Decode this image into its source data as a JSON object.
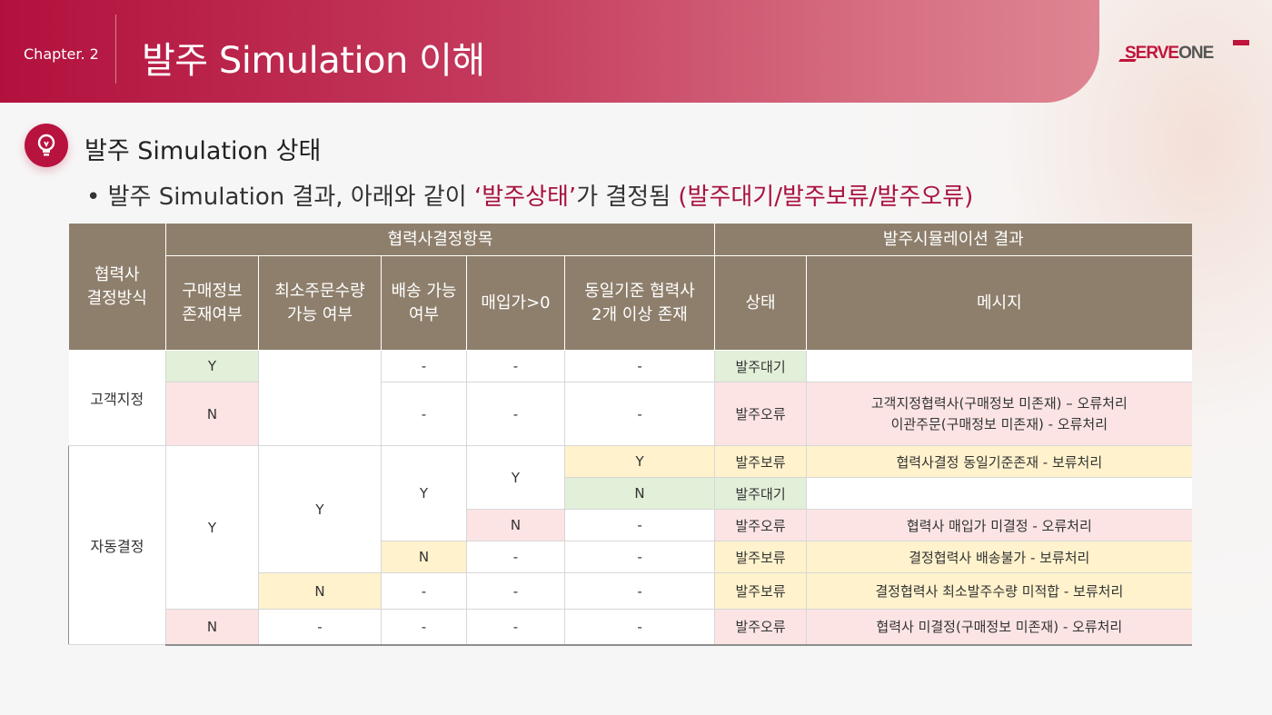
{
  "header": {
    "chapter": "Chapter. 2",
    "title": "발주 Simulation 이해",
    "logo_serve": "SERVE",
    "logo_one": "ONE"
  },
  "section": {
    "icon": "lightbulb-icon",
    "title": "발주 Simulation 상태",
    "bullet_prefix": "• 발주 Simulation 결과, 아래와 같이 ",
    "bullet_accent1": "‘발주상태’",
    "bullet_mid": "가 결정됨 ",
    "bullet_accent2": "(발주대기/발주보류/발주오류)"
  },
  "colors": {
    "brand": "#b2113d",
    "table_header": "#8e7f6c",
    "wait": "#e2efd9",
    "error": "#fce4e4",
    "hold": "#fff2cc"
  },
  "table": {
    "h_method": "협력사\n결정방식",
    "h_group1": "협력사결정항목",
    "h_group2": "발주시뮬레이션 결과",
    "h_cols": [
      "구매정보\n존재여부",
      "최소주문수량\n가능 여부",
      "배송 가능\n여부",
      "매입가>0",
      "동일기준 협력사\n2개 이상 존재",
      "상태",
      "메시지"
    ],
    "methods": [
      "고객지정",
      "자동결정"
    ],
    "rows": [
      {
        "c1": "Y",
        "c2": "",
        "c3": "-",
        "c4": "-",
        "c5": "-",
        "status": "발주대기",
        "msg": ""
      },
      {
        "c1": "N",
        "c2": "",
        "c3": "-",
        "c4": "-",
        "c5": "-",
        "status": "발주오류",
        "msg1": "고객지정협력사(구매정보 미존재) – 오류처리",
        "msg2": "이관주문(구매정보 미존재) - 오류처리"
      },
      {
        "c1": "Y",
        "c2": "Y",
        "c3": "Y",
        "c4": "Y",
        "c5": "Y",
        "status": "발주보류",
        "msg": "협력사결정 동일기준존재 - 보류처리"
      },
      {
        "c5": "N",
        "status": "발주대기",
        "msg": ""
      },
      {
        "c4": "N",
        "c5": "-",
        "status": "발주오류",
        "msg": "협력사 매입가 미결정 - 오류처리"
      },
      {
        "c3": "N",
        "c4": "-",
        "c5": "-",
        "status": "발주보류",
        "msg": "결정협력사 배송불가 - 보류처리"
      },
      {
        "c2": "N",
        "c3": "-",
        "c4": "-",
        "c5": "-",
        "status": "발주보류",
        "msg": "결정협력사 최소발주수량 미적합 - 보류처리"
      },
      {
        "c1": "N",
        "c2": "-",
        "c3": "-",
        "c4": "-",
        "c5": "-",
        "status": "발주오류",
        "msg": "협력사 미결정(구매정보 미존재) - 오류처리"
      }
    ]
  }
}
